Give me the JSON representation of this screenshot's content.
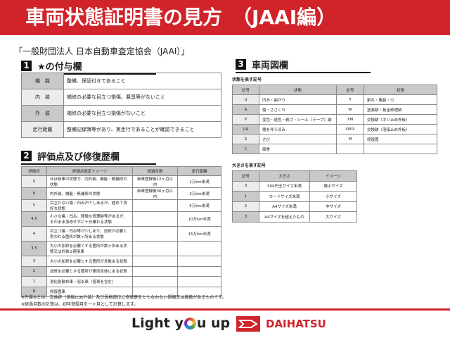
{
  "header": {
    "title": "車両状態証明書の見方　（JAAI編）"
  },
  "organization": "「一般財団法人 日本自動車査定協会（JAAI）」",
  "section1": {
    "num": "1",
    "title": "★の付与欄",
    "rows": [
      [
        "機　能",
        "整備、保証付きであること"
      ],
      [
        "内　装",
        "補修の必要な目立つ損傷、悪臭等がないこと"
      ],
      [
        "外　装",
        "補修の必要な目立つ損傷がないこと"
      ],
      [
        "走行距離",
        "整備記録簿等があり、実走行であることが確認できること"
      ]
    ]
  },
  "section2": {
    "num": "2",
    "title": "評価点及び修復歴欄",
    "headers": [
      "評価点",
      "評価点設定イメージ",
      "経過月数",
      "走行距離"
    ],
    "rows": [
      [
        "S",
        "ほぼ新車の状態で、内外装、機能・無補修の状態",
        "新車登録後12ヶ月以内",
        "1万km未満"
      ],
      [
        "6",
        "内外装、機能・無補修の状態",
        "新車登録後36ヶ月以内",
        "3万km未満"
      ],
      [
        "5",
        "目立たない傷・凹みが少しあるが、極めて良好な状態",
        "",
        "5万km未満"
      ],
      [
        "4.5",
        "小さな傷・凹み、軽微な修理跡等があるが、そのまま加修せずに十分乗れる状態",
        "",
        "10万km未満"
      ],
      [
        "4",
        "目立つ傷・凹み等が少しあり、加修が必要と思われる箇所が数ヶ所ある状態",
        "",
        "15万km未満"
      ],
      [
        "3.5",
        "大小の加修を必要とする箇所が数ヶ所ある状態又は外装②適用車",
        "",
        ""
      ],
      [
        "3",
        "大小の加修を必要とする箇所が多数ある状態",
        "",
        ""
      ],
      [
        "2",
        "加修を必要とする箇所が車両全体にある状態",
        "",
        ""
      ],
      [
        "1",
        "消化剤散布車・冠水車（雹車を含む）",
        "",
        ""
      ],
      [
        "R",
        "修復歴車",
        "",
        ""
      ]
    ]
  },
  "notes": [
    "※外装②とは、交換跡（溶接止め外装）及び骨格部位に修復歴をともなわない損傷又は腐蝕があるものです。",
    "※経過月数の計算は、初年登録月を一ヶ月として計算します。"
  ],
  "section3": {
    "num": "3",
    "title": "車両図欄",
    "state_label": "状態を表す記号",
    "state_headers": [
      "記号",
      "状態",
      "記号",
      "状態"
    ],
    "state_rows": [
      [
        "U",
        "凹み・曲がり",
        "T",
        "割れ・亀裂・穴"
      ],
      [
        "A",
        "傷・ささくれ",
        "W",
        "塗装跡・板金修理跡"
      ],
      [
        "P",
        "変色・退色・剥げ・シール（テープ）跡",
        "XM",
        "交換跡（ネジ止め外板）"
      ],
      [
        "UA",
        "傷を伴う凹み",
        "XM②",
        "交換跡（溶接止め外板）"
      ],
      [
        "S",
        "さび",
        "M",
        "修復歴"
      ],
      [
        "C",
        "腐食",
        "",
        ""
      ]
    ],
    "size_label": "大きさを表す記号",
    "size_headers": [
      "記号",
      "大きさ",
      "イメージ"
    ],
    "size_rows": [
      [
        "0",
        "500円玉サイズ未満",
        "微小サイズ"
      ],
      [
        "1",
        "カードサイズ未満",
        "小サイズ"
      ],
      [
        "2",
        "A4サイズ未満",
        "中サイズ"
      ],
      [
        "3",
        "A4サイズを超えたもの",
        "大サイズ"
      ]
    ]
  },
  "footer": {
    "slogan_pre": "Light y",
    "slogan_post": "u up",
    "brand": "DAIHATSU",
    "accent": "#d0232a"
  }
}
